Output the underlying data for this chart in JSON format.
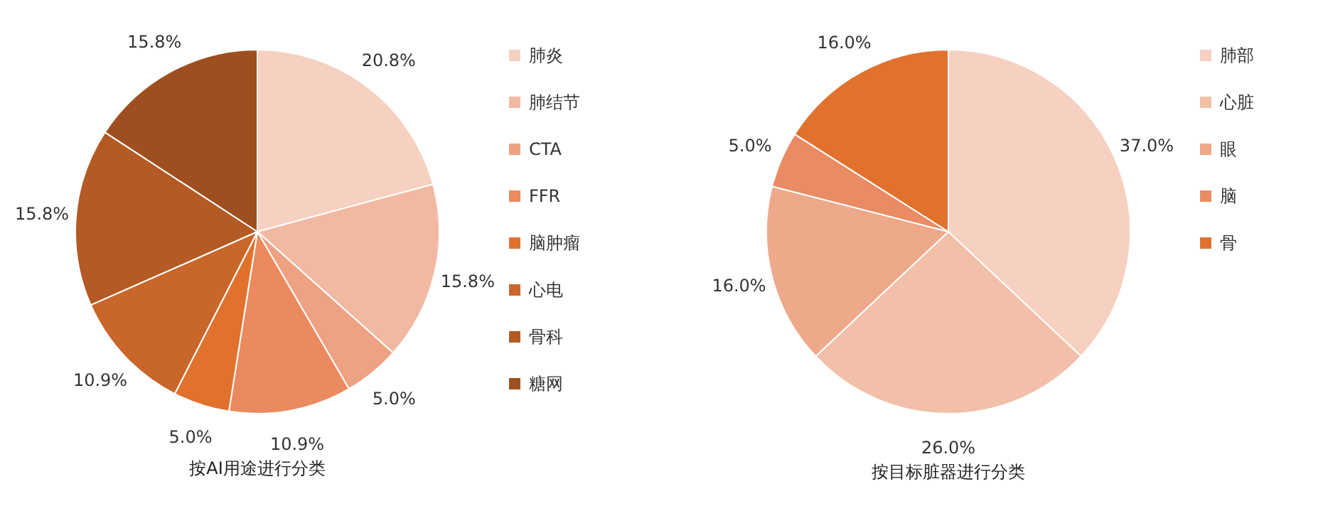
{
  "chart_data": [
    {
      "type": "pie",
      "title": "按AI用途进行分类",
      "categories": [
        "肺炎",
        "肺结节",
        "CTA",
        "FFR",
        "脑肿瘤",
        "心电",
        "骨科",
        "糖网"
      ],
      "values": [
        20.8,
        15.8,
        5.0,
        10.9,
        5.0,
        10.9,
        15.8,
        15.8
      ],
      "value_labels": [
        "20.8%",
        "15.8%",
        "5.0%",
        "10.9%",
        "5.0%",
        "10.9%",
        "15.8%",
        "15.8%"
      ],
      "colors": [
        "#f6d0c1",
        "#f2b9a2",
        "#eea283",
        "#ea8a5e",
        "#e0722e",
        "#c9662a",
        "#b45a24",
        "#9e4f1f"
      ],
      "legend": "right"
    },
    {
      "type": "pie",
      "title": "按目标脏器进行分类",
      "categories": [
        "肺部",
        "心脏",
        "眼",
        "脑",
        "骨"
      ],
      "values": [
        37.0,
        26.0,
        16.0,
        5.0,
        16.0
      ],
      "value_labels": [
        "37.0%",
        "26.0%",
        "16.0%",
        "5.0%",
        "16.0%"
      ],
      "colors": [
        "#f6d0c1",
        "#f2bfa8",
        "#eea88a",
        "#e98c63",
        "#e0722e"
      ],
      "legend": "right"
    }
  ]
}
